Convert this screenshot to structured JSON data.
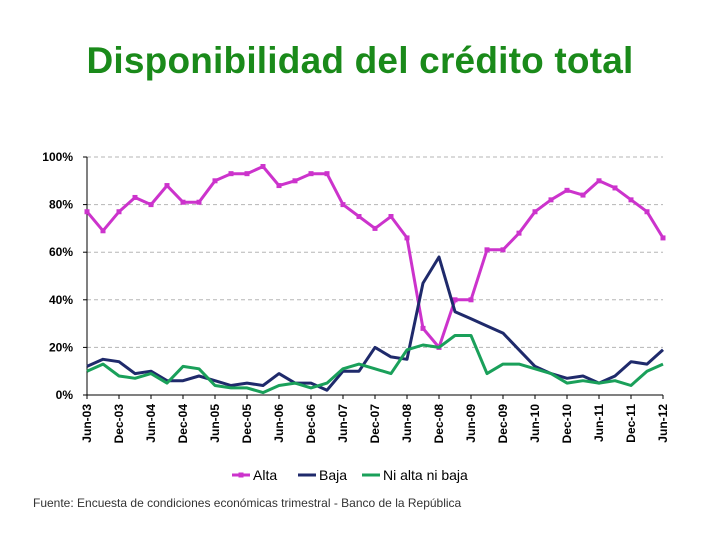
{
  "title": "Disponibilidad del crédito total",
  "source_note": "Fuente:  Encuesta de condiciones económicas trimestral - Banco de la República",
  "chart_data": {
    "type": "line",
    "title": "Disponibilidad del crédito total",
    "ylim": [
      0,
      100
    ],
    "yticks": [
      "0%",
      "20%",
      "40%",
      "60%",
      "80%",
      "100%"
    ],
    "ytick_values": [
      0,
      20,
      40,
      60,
      80,
      100
    ],
    "grid": "horizontal dashed",
    "legend_position": "bottom",
    "x_tick_labels": [
      "Jun-03",
      "Dec-03",
      "Jun-04",
      "Dec-04",
      "Jun-05",
      "Dec-05",
      "Jun-06",
      "Dec-06",
      "Jun-07",
      "Dec-07",
      "Jun-08",
      "Dec-08",
      "Jun-09",
      "Dec-09",
      "Jun-10",
      "Dec-10",
      "Jun-11",
      "Dec-11",
      "Jun-12"
    ],
    "x_periods": 37,
    "series": [
      {
        "name": "Alta",
        "color": "#cc33cc",
        "marker": "square",
        "values": [
          77,
          69,
          77,
          83,
          80,
          88,
          81,
          81,
          90,
          93,
          93,
          96,
          88,
          90,
          93,
          93,
          80,
          75,
          70,
          75,
          66,
          28,
          20,
          40,
          40,
          61,
          61,
          68,
          77,
          82,
          86,
          84,
          90,
          87,
          82,
          77,
          66
        ]
      },
      {
        "name": "Baja",
        "color": "#1f2a6b",
        "marker": "none",
        "values": [
          12,
          15,
          14,
          9,
          10,
          6,
          6,
          8,
          6,
          4,
          5,
          4,
          9,
          5,
          5,
          2,
          10,
          10,
          20,
          16,
          15,
          47,
          58,
          35,
          32,
          29,
          26,
          19,
          12,
          9,
          7,
          8,
          5,
          8,
          14,
          13,
          19
        ]
      },
      {
        "name": "Ni alta ni baja",
        "color": "#1aa05a",
        "marker": "none",
        "values": [
          10,
          13,
          8,
          7,
          9,
          5,
          12,
          11,
          4,
          3,
          3,
          1,
          4,
          5,
          3,
          5,
          11,
          13,
          11,
          9,
          19,
          21,
          20,
          25,
          25,
          9,
          13,
          13,
          11,
          9,
          5,
          6,
          5,
          6,
          4,
          10,
          13
        ]
      }
    ]
  }
}
